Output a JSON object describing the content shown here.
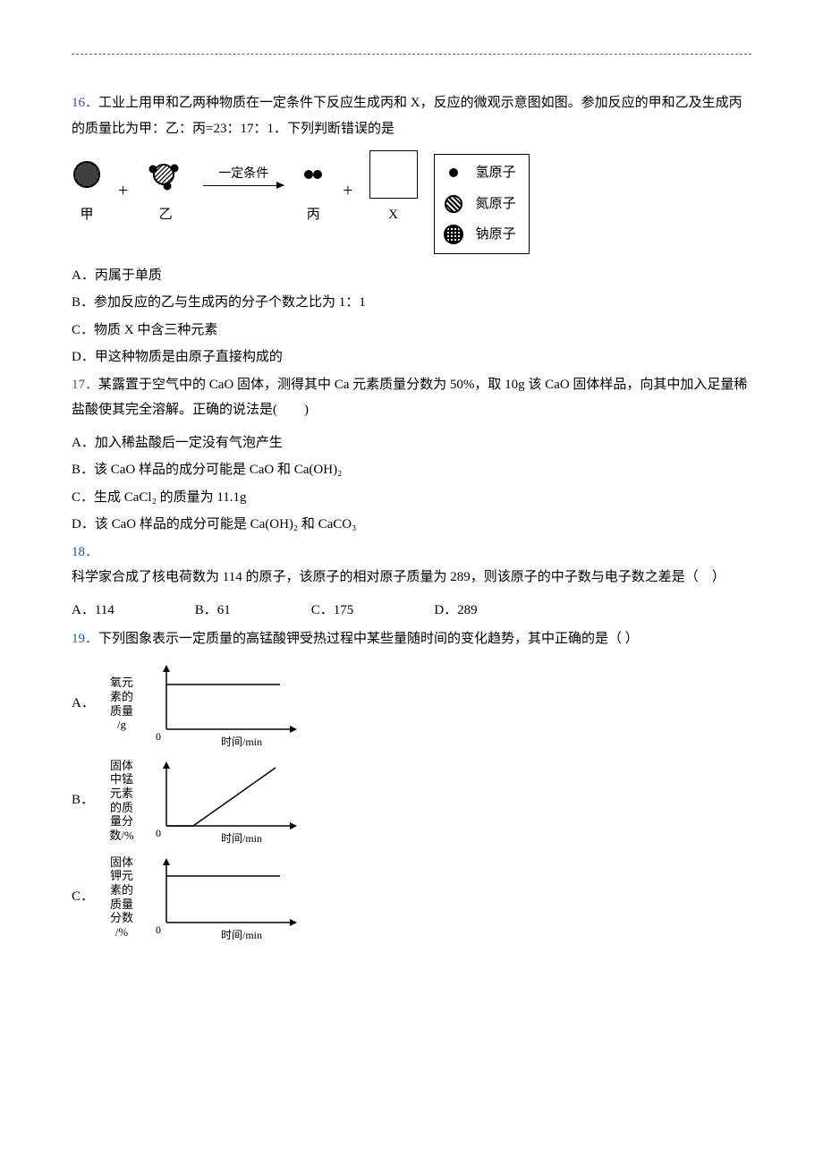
{
  "q16": {
    "num": "16．",
    "text1": "工业上用甲和乙两种物质在一定条件下反应生成丙和 X，反应的微观示意图如图。参加反应的甲和乙及生成丙的质量比为甲：乙：丙=23：17：1．下列判断错误的是",
    "reaction": {
      "labels": {
        "jia": "甲",
        "yi": "乙",
        "bing": "丙",
        "x": "X"
      },
      "arrow_text": "一定条件",
      "plus": "+"
    },
    "legend": {
      "h": "氢原子",
      "n": "氮原子",
      "na": "钠原子"
    },
    "opts": {
      "A": "A．丙属于单质",
      "B": "B．参加反应的乙与生成丙的分子个数之比为 1：1",
      "C": "C．物质 X 中含三种元素",
      "D": "D．甲这种物质是由原子直接构成的"
    }
  },
  "q17": {
    "num": "17．",
    "text": "某露置于空气中的 CaO 固体，测得其中 Ca 元素质量分数为 50%，取 10g 该 CaO 固体样品，向其中加入足量稀盐酸使其完全溶解。正确的说法是(　　)",
    "opts": {
      "A": "A．加入稀盐酸后一定没有气泡产生",
      "B": "B．该 CaO 样品的成分可能是 CaO 和 Ca(OH)₂",
      "C": "C．生成 CaCl₂ 的质量为 11.1g",
      "D": "D．该 CaO 样品的成分可能是 Ca(OH)₂ 和 CaCO₃"
    }
  },
  "q18": {
    "num": "18．",
    "text": "科学家合成了核电荷数为 114 的原子，该原子的相对原子质量为 289，则该原子的中子数与电子数之差是（　）",
    "opts": {
      "A": "A．114",
      "B": "B．61",
      "C": "C．175",
      "D": "D．289"
    }
  },
  "q19": {
    "num": "19．",
    "text": "下列图象表示一定质量的高锰酸钾受热过程中某些量随时间的变化趋势，其中正确的是（  ）",
    "charts": {
      "xlabel": "时间/min",
      "A": {
        "letter": "A．",
        "ylines": [
          "氧元",
          "素的",
          "质量",
          "/g"
        ],
        "type": "flat_high"
      },
      "B": {
        "letter": "B．",
        "ylines": [
          "固体",
          "中锰",
          "元素",
          "的质",
          "量分",
          "数/%"
        ],
        "type": "delay_then_rise"
      },
      "C": {
        "letter": "C．",
        "ylines": [
          "固体",
          "钾元",
          "素的",
          "质量",
          "分数",
          "/%"
        ],
        "type": "flat_high_axis0"
      }
    },
    "chart_style": {
      "width": 170,
      "height": 100,
      "axis_color": "#000000",
      "line_color": "#000000",
      "line_width": 1.5,
      "origin_label": "0"
    }
  },
  "colors": {
    "qnum": "#2255bb",
    "text": "#000000",
    "bg": "#ffffff"
  }
}
